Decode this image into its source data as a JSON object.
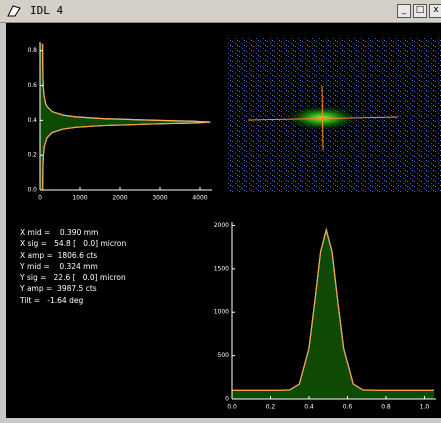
{
  "window": {
    "title": "IDL 4"
  },
  "readout": [
    "X mid =    0.390 mm",
    "X sig =   54.8 [   0.0] micron",
    "X amp =  1806.6 cts",
    "Y mid =    0.324 mm",
    "Y sig =   22.6 [   0.0] micron",
    "Y amp =  3987.5 cts",
    "Tilt =   -1.64 deg"
  ],
  "chart_data": [
    {
      "type": "area",
      "orientation": "horizontal",
      "color": "#0f4a05",
      "line_color": "#ff8c1a",
      "x": [
        0,
        0.05,
        0.1,
        0.15,
        0.2,
        0.25,
        0.3,
        0.33,
        0.35,
        0.36,
        0.37,
        0.38,
        0.385,
        0.39,
        0.395,
        0.4,
        0.41,
        0.42,
        0.43,
        0.45,
        0.48,
        0.5,
        0.55,
        0.6,
        0.65,
        0.7,
        0.75,
        0.8,
        0.84
      ],
      "values": [
        66,
        68,
        71,
        76,
        86,
        108,
        174,
        307,
        578,
        900,
        1572,
        2968,
        3840,
        4260,
        3840,
        2968,
        1572,
        900,
        578,
        307,
        174,
        137,
        97,
        81,
        74,
        70,
        67,
        66,
        65
      ],
      "xlim": [
        0,
        4300
      ],
      "xticks": [
        0,
        1000,
        2000,
        3000,
        4000
      ],
      "ylim": [
        0,
        0.85
      ],
      "yticks": [
        {
          "value": 0,
          "label": "0.0"
        },
        0.2,
        0.4,
        0.6,
        0.8
      ]
    },
    {
      "type": "area",
      "orientation": "vertical",
      "color": "#0f4a05",
      "line_color": "#ff8c1a",
      "x": [
        0,
        0.1,
        0.2,
        0.25,
        0.3,
        0.35,
        0.4,
        0.43,
        0.46,
        0.49,
        0.52,
        0.55,
        0.58,
        0.63,
        0.68,
        0.75,
        0.85,
        0.95,
        1.05
      ],
      "values": [
        100,
        100,
        100,
        100,
        105,
        173,
        585,
        1120,
        1694,
        1950,
        1694,
        1120,
        585,
        173,
        105,
        100,
        100,
        100,
        100
      ],
      "xlim": [
        0,
        1.06
      ],
      "xticks": [
        {
          "value": 0,
          "label": "0.0"
        },
        0.2,
        0.4,
        0.6,
        0.8,
        {
          "value": 1,
          "label": "1.0"
        }
      ],
      "ylim": [
        0,
        2040
      ],
      "yticks": [
        0,
        500,
        1000,
        1500,
        2000
      ]
    }
  ]
}
